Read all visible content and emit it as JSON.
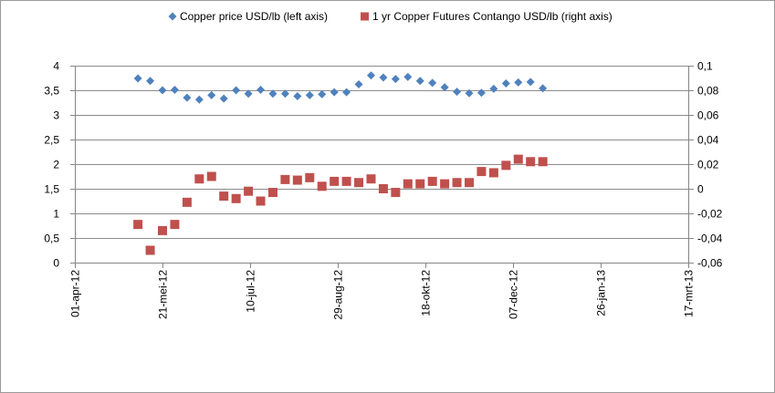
{
  "chart_data": {
    "type": "scatter",
    "x_axis": {
      "type": "date",
      "ticks": [
        "2012-04-01",
        "2012-05-21",
        "2012-07-10",
        "2012-08-29",
        "2012-10-18",
        "2012-12-07",
        "2013-01-26",
        "2013-03-17"
      ],
      "tick_labels": [
        "01-apr-12",
        "21-mei-12",
        "10-jul-12",
        "29-aug-12",
        "18-okt-12",
        "07-dec-12",
        "26-jan-13",
        "17-mrt-13"
      ],
      "range": [
        "2012-04-01",
        "2013-03-17"
      ]
    },
    "y_left": {
      "range": [
        0,
        4
      ],
      "ticks": [
        0,
        0.5,
        1,
        1.5,
        2,
        2.5,
        3,
        3.5,
        4
      ],
      "tick_labels": [
        "0",
        "0,5",
        "1",
        "1,5",
        "2",
        "2,5",
        "3",
        "3,5",
        "4"
      ]
    },
    "y_right": {
      "range": [
        -0.06,
        0.1
      ],
      "ticks": [
        -0.06,
        -0.04,
        -0.02,
        0,
        0.02,
        0.04,
        0.06,
        0.08,
        0.1
      ],
      "tick_labels": [
        "-0,06",
        "-0,04",
        "-0,02",
        "0",
        "0,02",
        "0,04",
        "0,06",
        "0,08",
        "0,1"
      ]
    },
    "grid": {
      "horizontal": true,
      "vertical": false
    },
    "legend_position": "top",
    "series": [
      {
        "name": "Copper price USD/lb (left axis)",
        "axis": "left",
        "marker": "diamond",
        "color": "#4f81bd",
        "points": [
          [
            "2012-05-07",
            3.74
          ],
          [
            "2012-05-14",
            3.69
          ],
          [
            "2012-05-21",
            3.5
          ],
          [
            "2012-05-28",
            3.51
          ],
          [
            "2012-06-04",
            3.35
          ],
          [
            "2012-06-11",
            3.31
          ],
          [
            "2012-06-18",
            3.4
          ],
          [
            "2012-06-25",
            3.33
          ],
          [
            "2012-07-02",
            3.5
          ],
          [
            "2012-07-09",
            3.43
          ],
          [
            "2012-07-16",
            3.51
          ],
          [
            "2012-07-23",
            3.43
          ],
          [
            "2012-07-30",
            3.43
          ],
          [
            "2012-08-06",
            3.38
          ],
          [
            "2012-08-13",
            3.4
          ],
          [
            "2012-08-20",
            3.42
          ],
          [
            "2012-08-27",
            3.46
          ],
          [
            "2012-09-03",
            3.46
          ],
          [
            "2012-09-10",
            3.62
          ],
          [
            "2012-09-17",
            3.8
          ],
          [
            "2012-09-24",
            3.76
          ],
          [
            "2012-10-01",
            3.73
          ],
          [
            "2012-10-08",
            3.77
          ],
          [
            "2012-10-15",
            3.69
          ],
          [
            "2012-10-22",
            3.65
          ],
          [
            "2012-10-29",
            3.56
          ],
          [
            "2012-11-05",
            3.47
          ],
          [
            "2012-11-12",
            3.44
          ],
          [
            "2012-11-19",
            3.45
          ],
          [
            "2012-11-26",
            3.53
          ],
          [
            "2012-12-03",
            3.64
          ],
          [
            "2012-12-10",
            3.66
          ],
          [
            "2012-12-17",
            3.67
          ],
          [
            "2012-12-24",
            3.54
          ]
        ]
      },
      {
        "name": "1 yr Copper Futures Contango USD/lb (right axis)",
        "axis": "right",
        "marker": "square",
        "color": "#c0504d",
        "points": [
          [
            "2012-05-07",
            -0.029
          ],
          [
            "2012-05-14",
            -0.05
          ],
          [
            "2012-05-21",
            -0.034
          ],
          [
            "2012-05-28",
            -0.029
          ],
          [
            "2012-06-04",
            -0.011
          ],
          [
            "2012-06-11",
            0.008
          ],
          [
            "2012-06-18",
            0.01
          ],
          [
            "2012-06-25",
            -0.006
          ],
          [
            "2012-07-02",
            -0.008
          ],
          [
            "2012-07-09",
            -0.002
          ],
          [
            "2012-07-16",
            -0.01
          ],
          [
            "2012-07-23",
            -0.003
          ],
          [
            "2012-07-30",
            0.0075
          ],
          [
            "2012-08-06",
            0.007
          ],
          [
            "2012-08-13",
            0.009
          ],
          [
            "2012-08-20",
            0.002
          ],
          [
            "2012-08-27",
            0.006
          ],
          [
            "2012-09-03",
            0.006
          ],
          [
            "2012-09-10",
            0.005
          ],
          [
            "2012-09-17",
            0.008
          ],
          [
            "2012-09-24",
            0.0
          ],
          [
            "2012-10-01",
            -0.003
          ],
          [
            "2012-10-08",
            0.004
          ],
          [
            "2012-10-15",
            0.004
          ],
          [
            "2012-10-22",
            0.006
          ],
          [
            "2012-10-29",
            0.004
          ],
          [
            "2012-11-05",
            0.005
          ],
          [
            "2012-11-12",
            0.005
          ],
          [
            "2012-11-19",
            0.014
          ],
          [
            "2012-11-26",
            0.013
          ],
          [
            "2012-12-03",
            0.019
          ],
          [
            "2012-12-10",
            0.024
          ],
          [
            "2012-12-17",
            0.022
          ],
          [
            "2012-12-24",
            0.022
          ]
        ]
      }
    ]
  }
}
